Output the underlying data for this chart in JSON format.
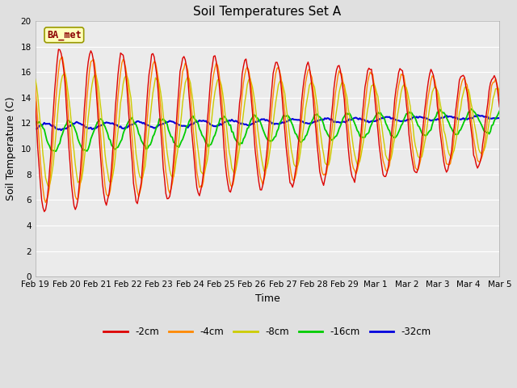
{
  "title": "Soil Temperatures Set A",
  "xlabel": "Time",
  "ylabel": "Soil Temperature (C)",
  "annotation": "BA_met",
  "ylim": [
    0,
    20
  ],
  "colors": {
    "-2cm": "#dd0000",
    "-4cm": "#ff8800",
    "-8cm": "#cccc00",
    "-16cm": "#00cc00",
    "-32cm": "#0000dd"
  },
  "xtick_labels": [
    "Feb 19",
    "Feb 20",
    "Feb 21",
    "Feb 22",
    "Feb 23",
    "Feb 24",
    "Feb 25",
    "Feb 26",
    "Feb 27",
    "Feb 28",
    "Feb 29",
    "Mar 1",
    "Mar 2",
    "Mar 3",
    "Mar 4",
    "Mar 5"
  ],
  "background_color": "#e0e0e0",
  "plot_bg": "#ebebeb",
  "legend_colors": [
    "#dd0000",
    "#ff8800",
    "#cccc00",
    "#00cc00",
    "#0000dd"
  ],
  "legend_labels": [
    "-2cm",
    "-4cm",
    "-8cm",
    "-16cm",
    "-32cm"
  ]
}
